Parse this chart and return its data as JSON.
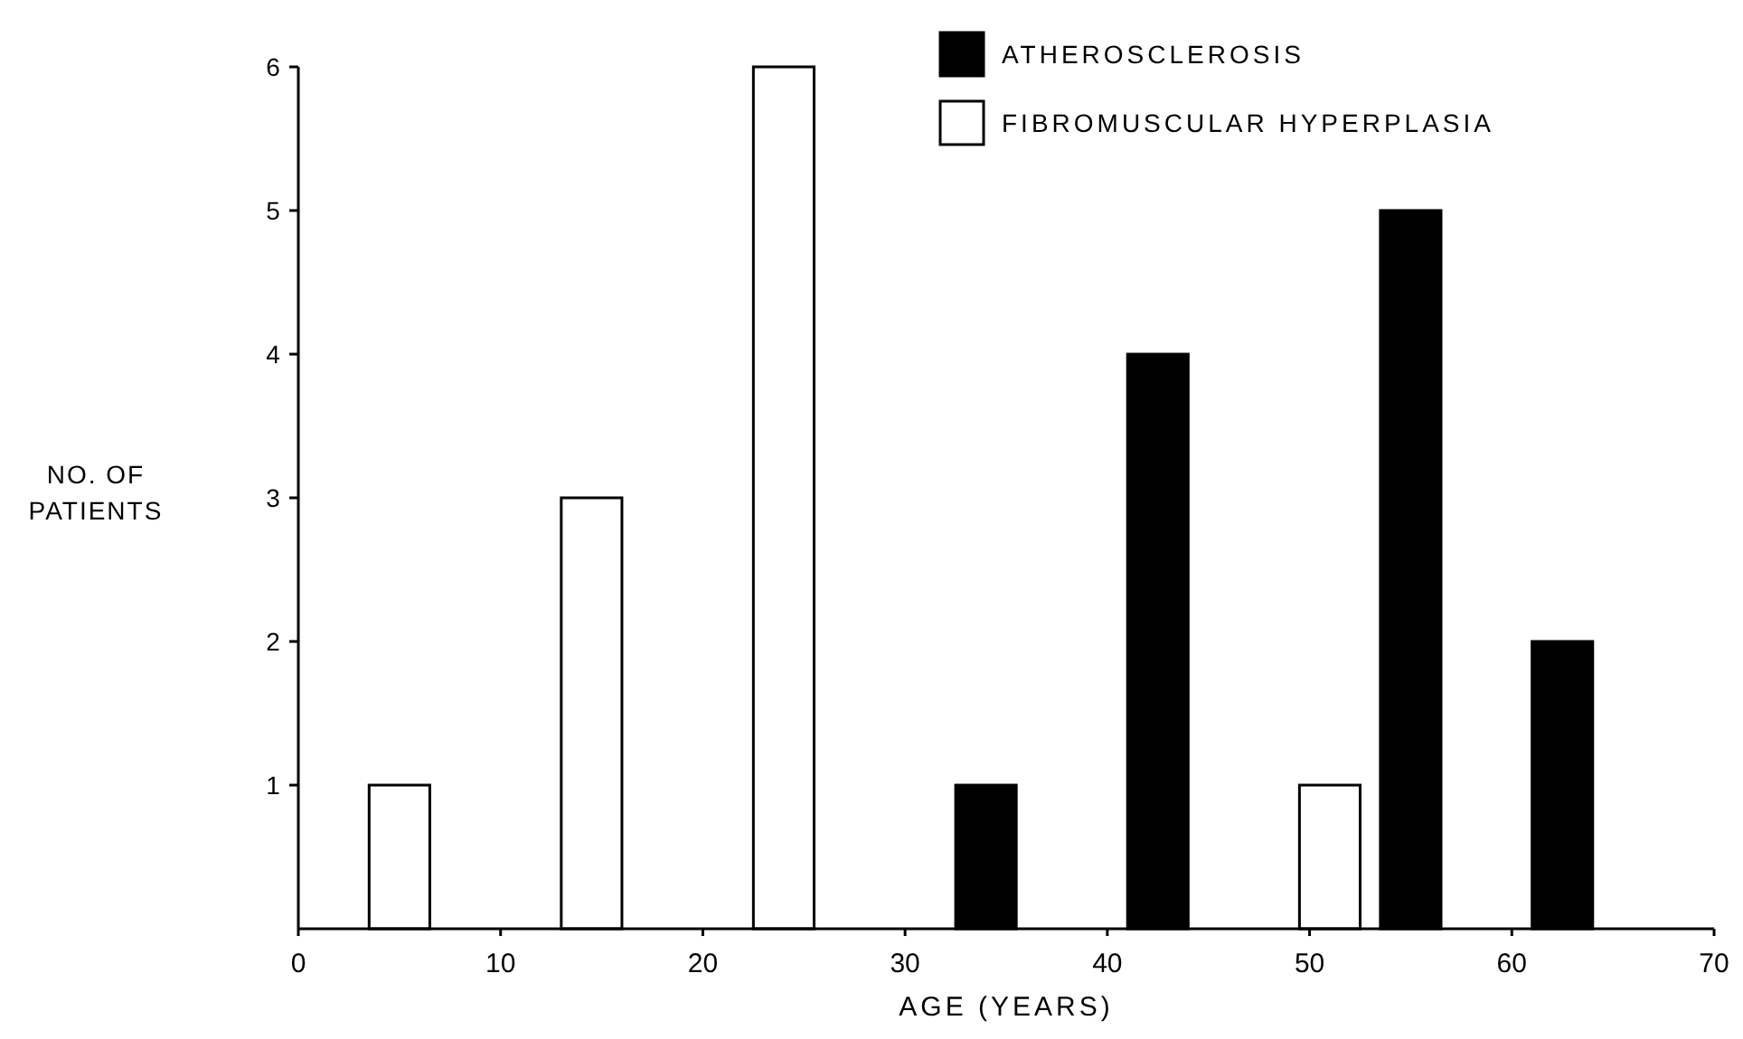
{
  "chart_data": {
    "type": "bar",
    "xlabel": "AGE (YEARS)",
    "ylabel": "NO. OF PATIENTS",
    "xlim": [
      0,
      70
    ],
    "xticks": [
      0,
      10,
      20,
      30,
      40,
      50,
      60,
      70
    ],
    "ylim": [
      0,
      6
    ],
    "yticks": [
      1,
      2,
      3,
      4,
      5,
      6
    ],
    "series": [
      {
        "name": "ATHEROSCLEROSIS",
        "color": "#000000",
        "x": [
          34,
          42.5,
          55,
          62.5
        ],
        "values": [
          1,
          4,
          5,
          2
        ]
      },
      {
        "name": "FIBROMUSCULAR HYPERPLASIA",
        "color": "#ffffff",
        "x": [
          5,
          14.5,
          24,
          51
        ],
        "values": [
          1,
          3,
          6,
          1
        ]
      }
    ],
    "legend": "top right",
    "grid": false
  }
}
